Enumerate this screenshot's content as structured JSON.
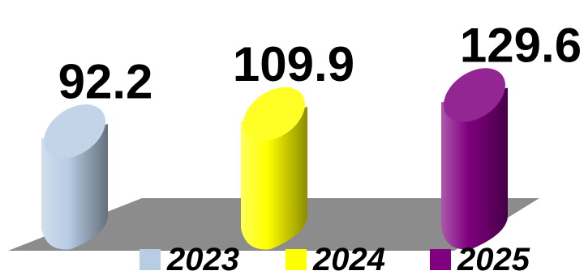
{
  "chart_data": {
    "type": "bar",
    "style": "3d-cylinder",
    "categories": [
      "2023",
      "2024",
      "2025"
    ],
    "values": [
      92.2,
      109.9,
      129.6
    ],
    "value_labels": [
      "92.2",
      "109.9",
      "129.6"
    ],
    "colors": [
      "#b8cce4",
      "#ffff00",
      "#800080"
    ],
    "legend": "bottom",
    "grid": false,
    "title": "",
    "xlabel": "",
    "ylabel": "",
    "ylim": [
      0,
      130
    ]
  }
}
